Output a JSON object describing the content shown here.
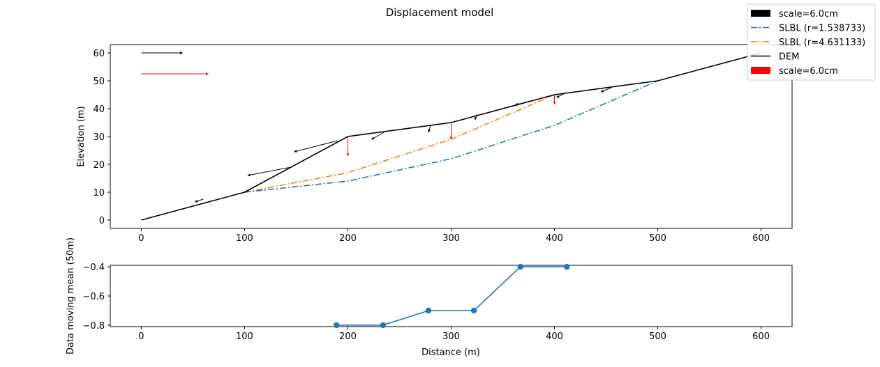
{
  "figure": {
    "title": "Displacement model"
  },
  "legend": {
    "entries": [
      {
        "label": "scale=6.0cm",
        "kind": "patch",
        "color": "#000000"
      },
      {
        "label": "SLBL (r=1.538733)",
        "kind": "dashdot",
        "color": "#1f77b4"
      },
      {
        "label": "SLBL (r=4.631133)",
        "kind": "dashdot",
        "color": "#ff7f0e"
      },
      {
        "label": "DEM",
        "kind": "line",
        "color": "#000000"
      },
      {
        "label": "scale=6.0cm",
        "kind": "patch",
        "color": "#ff0000"
      }
    ]
  },
  "chart_data": [
    {
      "type": "line",
      "xlabel": "",
      "ylabel": "Elevation (m)",
      "xlim": [
        -30,
        630
      ],
      "ylim": [
        -3,
        63
      ],
      "xticks": [
        0,
        100,
        200,
        300,
        400,
        500,
        600
      ],
      "yticks": [
        0,
        10,
        20,
        30,
        40,
        50,
        60
      ],
      "series": [
        {
          "name": "DEM",
          "color": "#000000",
          "style": "solid",
          "x": [
            0,
            100,
            200,
            300,
            400,
            500,
            600
          ],
          "y": [
            0,
            10,
            30,
            35,
            45,
            50,
            60
          ]
        },
        {
          "name": "SLBL (r=1.538733)",
          "color": "#1f77b4",
          "style": "dashdot",
          "x": [
            100,
            200,
            300,
            400,
            500
          ],
          "y": [
            10,
            14,
            22,
            34,
            50
          ]
        },
        {
          "name": "SLBL (r=4.631133)",
          "color": "#ff7f0e",
          "style": "dashdot",
          "x": [
            100,
            200,
            300,
            400
          ],
          "y": [
            10,
            17,
            29,
            45
          ]
        }
      ],
      "displacement_vectors": [
        {
          "x": 60,
          "y": 7.5,
          "dx": -8,
          "dy": -1
        },
        {
          "x": 145,
          "y": 19,
          "dx": -42,
          "dy": -3
        },
        {
          "x": 190,
          "y": 28.5,
          "dx": -42,
          "dy": -4
        },
        {
          "x": 235,
          "y": 31.5,
          "dx": -12,
          "dy": -2.5
        },
        {
          "x": 280,
          "y": 34,
          "dx": -2,
          "dy": -2.5
        },
        {
          "x": 325,
          "y": 38,
          "dx": -2,
          "dy": -2
        },
        {
          "x": 365,
          "y": 42,
          "dx": -2,
          "dy": -1
        },
        {
          "x": 410,
          "y": 45.5,
          "dx": -8,
          "dy": -1.5
        },
        {
          "x": 455,
          "y": 47.5,
          "dx": -10,
          "dy": -1.5
        }
      ],
      "red_vectors": [
        {
          "x": 200,
          "y": 30,
          "dx": 0,
          "dy": -7
        },
        {
          "x": 300,
          "y": 35,
          "dx": 0,
          "dy": -6
        },
        {
          "x": 400,
          "y": 45,
          "dx": 0,
          "dy": -3.5
        }
      ],
      "scale_arrows": [
        {
          "color": "#000000",
          "x": 0,
          "y": 60,
          "dx": 40,
          "dy": 0
        },
        {
          "color": "#ff0000",
          "x": 0,
          "y": 52.5,
          "dx": 65,
          "dy": 0
        }
      ]
    },
    {
      "type": "line",
      "xlabel": "Distance (m)",
      "ylabel": "Data moving mean (50m)",
      "xlim": [
        -30,
        630
      ],
      "ylim": [
        -0.81,
        -0.39
      ],
      "xticks": [
        0,
        100,
        200,
        300,
        400,
        500,
        600
      ],
      "yticks": [
        -0.8,
        -0.6,
        -0.4
      ],
      "series": [
        {
          "name": "",
          "color": "#1f77b4",
          "style": "solid-markers",
          "x": [
            189,
            234,
            278,
            322,
            367,
            412
          ],
          "y": [
            -0.8,
            -0.8,
            -0.7,
            -0.7,
            -0.4,
            -0.4
          ]
        }
      ]
    }
  ]
}
